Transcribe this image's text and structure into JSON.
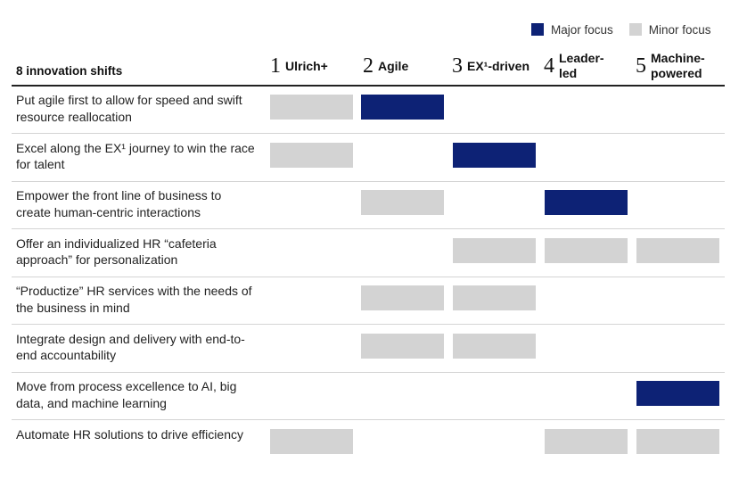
{
  "legend": {
    "major": {
      "label": "Major focus",
      "color": "#0d2275"
    },
    "minor": {
      "label": "Minor focus",
      "color": "#d3d3d3"
    }
  },
  "header": {
    "title": "8 innovation shifts",
    "columns": [
      {
        "num": "1",
        "label": "Ulrich+"
      },
      {
        "num": "2",
        "label": "Agile"
      },
      {
        "num": "3",
        "label": "EX¹-driven"
      },
      {
        "num": "4",
        "label": "Leader-\nled"
      },
      {
        "num": "5",
        "label": "Machine-\npowered"
      }
    ]
  },
  "chart_data": {
    "type": "table",
    "title": "",
    "columns": [
      "1 Ulrich+",
      "2 Agile",
      "3 EX¹-driven",
      "4 Leader-led",
      "5 Machine-powered"
    ],
    "rows": [
      {
        "shift": "Put agile first to allow for speed and swift resource reallocation",
        "cells": [
          "minor",
          "major",
          "",
          "",
          ""
        ]
      },
      {
        "shift": "Excel along the EX¹ journey to win the race for talent",
        "cells": [
          "minor",
          "",
          "major",
          "",
          ""
        ]
      },
      {
        "shift": "Empower the front line of business to create human-centric interactions",
        "cells": [
          "",
          "minor",
          "",
          "major",
          ""
        ]
      },
      {
        "shift": "Offer an individualized HR “cafeteria approach” for personalization",
        "cells": [
          "",
          "",
          "minor",
          "minor",
          "minor"
        ]
      },
      {
        "shift": "“Productize” HR services with the needs of the business in mind",
        "cells": [
          "",
          "minor",
          "minor",
          "",
          ""
        ]
      },
      {
        "shift": "Integrate design and delivery with end-to-end accountability",
        "cells": [
          "",
          "minor",
          "minor",
          "",
          ""
        ]
      },
      {
        "shift": "Move from process excellence to AI, big data, and machine learning",
        "cells": [
          "",
          "",
          "",
          "",
          "major"
        ]
      },
      {
        "shift": "Automate HR solutions to drive efficiency",
        "cells": [
          "minor",
          "",
          "",
          "minor",
          "minor"
        ]
      }
    ],
    "legend_position": "top-right"
  }
}
